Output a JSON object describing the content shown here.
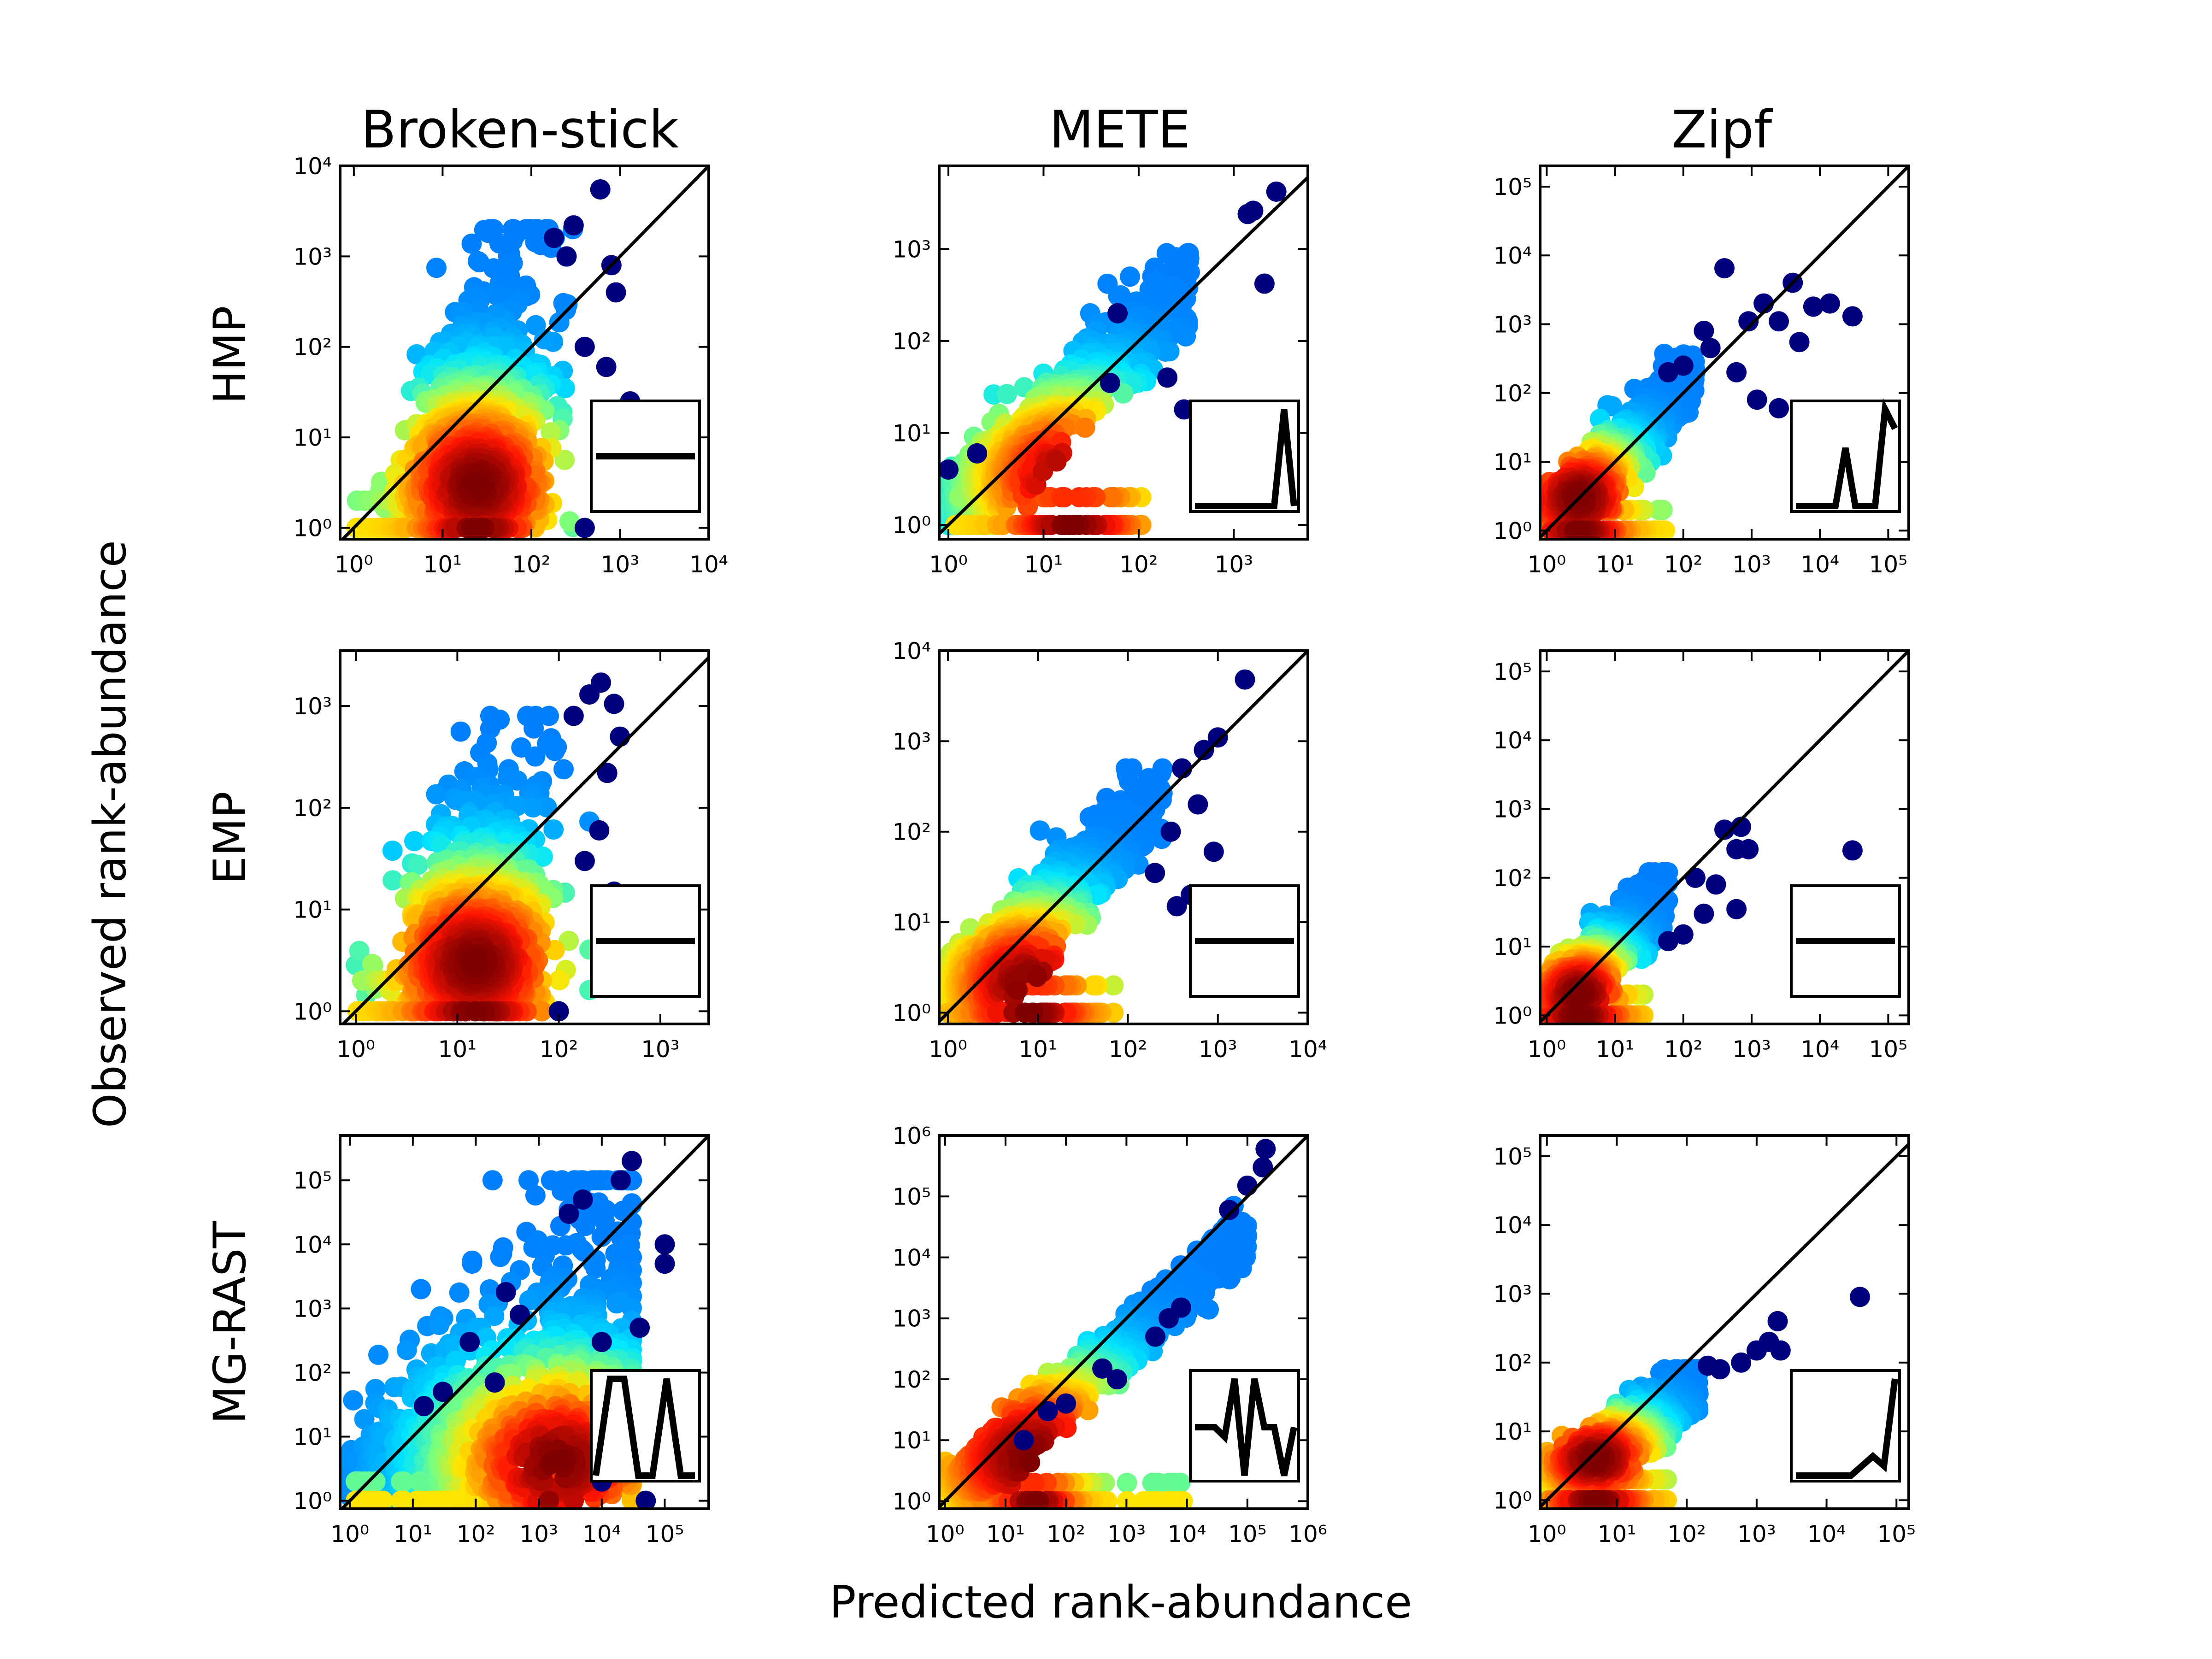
{
  "figure": {
    "xlabel": "Predicted rank-abundance",
    "ylabel": "Observed rank-abundance",
    "columns": [
      "Broken-stick",
      "METE",
      "Zipf"
    ],
    "rows": [
      "HMP",
      "EMP",
      "MG-RAST"
    ],
    "colormap": [
      "#00007f",
      "#0000ff",
      "#007fff",
      "#00e5ff",
      "#7dff7a",
      "#ffe500",
      "#ff7f00",
      "#ff1400",
      "#7f0000"
    ],
    "one_to_one_line": true
  },
  "chart_data": [
    {
      "type": "scatter",
      "row": "HMP",
      "column": "Broken-stick",
      "xscale": "log",
      "yscale": "log",
      "xlim": [
        0.7,
        10000
      ],
      "ylim": [
        0.75,
        10000
      ],
      "xticks": [
        1,
        10,
        100,
        1000,
        10000
      ],
      "yticks": [
        1,
        10,
        100,
        1000,
        10000
      ],
      "cloud": {
        "x_range": [
          1,
          300
        ],
        "y_range": [
          1,
          2000
        ],
        "dense_center": [
          25,
          3
        ],
        "pattern": "vertical plume"
      },
      "outliers": [
        [
          600,
          5500
        ],
        [
          300,
          2200
        ],
        [
          180,
          1600
        ],
        [
          250,
          1000
        ],
        [
          800,
          800
        ],
        [
          900,
          400
        ],
        [
          400,
          100
        ],
        [
          700,
          60
        ],
        [
          1300,
          25
        ],
        [
          400,
          1
        ]
      ],
      "inset": {
        "type": "line",
        "values": [
          1,
          1,
          1,
          1,
          1,
          1,
          1,
          1
        ]
      }
    },
    {
      "type": "scatter",
      "row": "HMP",
      "column": "METE",
      "xscale": "log",
      "yscale": "log",
      "xlim": [
        0.8,
        6000
      ],
      "ylim": [
        0.7,
        8000
      ],
      "xticks": [
        1,
        10,
        100,
        1000
      ],
      "yticks": [
        1,
        10,
        100,
        1000
      ],
      "cloud": {
        "x_range": [
          1,
          350
        ],
        "y_range": [
          1,
          900
        ],
        "dense_center": [
          20,
          3
        ],
        "pattern": "diagonal band"
      },
      "outliers": [
        [
          2800,
          4200
        ],
        [
          1600,
          2600
        ],
        [
          1400,
          2400
        ],
        [
          60,
          200
        ],
        [
          2100,
          420
        ],
        [
          300,
          18
        ],
        [
          50,
          35
        ],
        [
          1,
          4
        ],
        [
          2,
          6
        ],
        [
          200,
          40
        ]
      ],
      "inset": {
        "type": "line",
        "values": [
          0,
          0,
          0,
          0,
          0,
          0,
          0,
          0,
          0,
          1,
          0
        ]
      }
    },
    {
      "type": "scatter",
      "row": "HMP",
      "column": "Zipf",
      "xscale": "log",
      "yscale": "log",
      "xlim": [
        0.8,
        200000
      ],
      "ylim": [
        0.75,
        200000
      ],
      "xticks": [
        1,
        10,
        100,
        1000,
        10000,
        100000
      ],
      "yticks": [
        1,
        10,
        100,
        1000,
        10000,
        100000
      ],
      "cloud": {
        "x_range": [
          1,
          150
        ],
        "y_range": [
          1,
          400
        ],
        "dense_center": [
          3,
          3
        ],
        "pattern": "diagonal band"
      },
      "outliers": [
        [
          400,
          6500
        ],
        [
          900,
          1100
        ],
        [
          1500,
          2000
        ],
        [
          2500,
          1100
        ],
        [
          4000,
          4000
        ],
        [
          8000,
          1800
        ],
        [
          14000,
          2000
        ],
        [
          30000,
          1300
        ],
        [
          5000,
          550
        ],
        [
          250,
          450
        ],
        [
          600,
          200
        ],
        [
          1200,
          80
        ],
        [
          2500,
          60
        ],
        [
          200,
          800
        ],
        [
          100,
          250
        ],
        [
          60,
          200
        ]
      ],
      "inset": {
        "type": "line",
        "values": [
          0,
          0,
          0,
          0,
          0,
          0.6,
          0,
          0,
          0,
          1,
          0.8
        ]
      }
    },
    {
      "type": "scatter",
      "row": "EMP",
      "column": "Broken-stick",
      "xscale": "log",
      "yscale": "log",
      "xlim": [
        0.7,
        3000
      ],
      "ylim": [
        0.75,
        3500
      ],
      "xticks": [
        1,
        10,
        100,
        1000
      ],
      "yticks": [
        1,
        10,
        100,
        1000
      ],
      "cloud": {
        "x_range": [
          1,
          200
        ],
        "y_range": [
          1,
          800
        ],
        "dense_center": [
          15,
          3
        ],
        "pattern": "vertical plume"
      },
      "outliers": [
        [
          200,
          1300
        ],
        [
          260,
          1700
        ],
        [
          140,
          800
        ],
        [
          350,
          1050
        ],
        [
          400,
          500
        ],
        [
          300,
          220
        ],
        [
          250,
          60
        ],
        [
          180,
          30
        ],
        [
          350,
          15
        ],
        [
          100,
          1
        ]
      ],
      "inset": {
        "type": "line",
        "values": [
          1,
          1,
          1,
          1,
          1,
          1,
          1,
          1
        ]
      }
    },
    {
      "type": "scatter",
      "row": "EMP",
      "column": "METE",
      "xscale": "log",
      "yscale": "log",
      "xlim": [
        0.8,
        10000
      ],
      "ylim": [
        0.75,
        10000
      ],
      "xticks": [
        1,
        10,
        100,
        1000,
        10000
      ],
      "yticks": [
        1,
        10,
        100,
        1000,
        10000
      ],
      "cloud": {
        "x_range": [
          1,
          250
        ],
        "y_range": [
          1,
          500
        ],
        "dense_center": [
          8,
          2
        ],
        "pattern": "diagonal band"
      },
      "outliers": [
        [
          2000,
          4800
        ],
        [
          1000,
          1100
        ],
        [
          700,
          800
        ],
        [
          400,
          500
        ],
        [
          600,
          200
        ],
        [
          900,
          60
        ],
        [
          500,
          20
        ],
        [
          350,
          15
        ],
        [
          200,
          35
        ],
        [
          300,
          100
        ]
      ],
      "inset": {
        "type": "line",
        "values": [
          1,
          1,
          1,
          1,
          1,
          1,
          1,
          1
        ]
      }
    },
    {
      "type": "scatter",
      "row": "EMP",
      "column": "Zipf",
      "xscale": "log",
      "yscale": "log",
      "xlim": [
        0.8,
        200000
      ],
      "ylim": [
        0.75,
        200000
      ],
      "xticks": [
        1,
        10,
        100,
        1000,
        10000,
        100000
      ],
      "yticks": [
        1,
        10,
        100,
        1000,
        10000,
        100000
      ],
      "cloud": {
        "x_range": [
          1,
          60
        ],
        "y_range": [
          1,
          120
        ],
        "dense_center": [
          3,
          2
        ],
        "pattern": "diagonal band"
      },
      "outliers": [
        [
          400,
          500
        ],
        [
          700,
          550
        ],
        [
          600,
          260
        ],
        [
          900,
          260
        ],
        [
          30000,
          250
        ],
        [
          600,
          35
        ],
        [
          200,
          30
        ],
        [
          100,
          15
        ],
        [
          60,
          12
        ],
        [
          150,
          100
        ],
        [
          300,
          80
        ]
      ],
      "inset": {
        "type": "line",
        "values": [
          1,
          1,
          1,
          1,
          1,
          1,
          1,
          1
        ]
      }
    },
    {
      "type": "scatter",
      "row": "MG-RAST",
      "column": "Broken-stick",
      "xscale": "log",
      "yscale": "log",
      "xlim": [
        0.7,
        500000
      ],
      "ylim": [
        0.75,
        500000
      ],
      "xticks": [
        1,
        10,
        100,
        1000,
        10000,
        100000
      ],
      "yticks": [
        1,
        10,
        100,
        1000,
        10000,
        100000
      ],
      "cloud": {
        "x_range": [
          1,
          30000
        ],
        "y_range": [
          1,
          100000
        ],
        "dense_center": [
          2000,
          4
        ],
        "pattern": "two vertical plumes"
      },
      "outliers": [
        [
          30000,
          200000
        ],
        [
          20000,
          100000
        ],
        [
          5000,
          50000
        ],
        [
          3000,
          30000
        ],
        [
          100000,
          5000
        ],
        [
          100000,
          10000
        ],
        [
          40000,
          500
        ],
        [
          10000,
          300
        ],
        [
          300,
          1800
        ],
        [
          500,
          800
        ],
        [
          200,
          70
        ],
        [
          80,
          300
        ],
        [
          30,
          50
        ],
        [
          15,
          30
        ],
        [
          10000,
          2
        ],
        [
          50000,
          1
        ]
      ],
      "inset": {
        "type": "line",
        "values": [
          0,
          1,
          1,
          0,
          0,
          1,
          0,
          0
        ]
      }
    },
    {
      "type": "scatter",
      "row": "MG-RAST",
      "column": "METE",
      "xscale": "log",
      "yscale": "log",
      "xlim": [
        0.8,
        1000000
      ],
      "ylim": [
        0.75,
        1000000
      ],
      "xticks": [
        1,
        10,
        100,
        1000,
        10000,
        100000,
        1000000
      ],
      "yticks": [
        1,
        10,
        100,
        1000,
        10000,
        100000,
        1000000
      ],
      "cloud": {
        "x_range": [
          1,
          100000
        ],
        "y_range": [
          1,
          150000
        ],
        "dense_center": [
          30,
          5
        ],
        "pattern": "curved diagonal band"
      },
      "outliers": [
        [
          200000,
          600000
        ],
        [
          180000,
          300000
        ],
        [
          100000,
          150000
        ],
        [
          50000,
          60000
        ],
        [
          5000,
          1000
        ],
        [
          8000,
          1500
        ],
        [
          3000,
          500
        ],
        [
          700,
          100
        ],
        [
          400,
          150
        ],
        [
          100,
          40
        ],
        [
          50,
          30
        ],
        [
          20,
          10
        ]
      ],
      "inset": {
        "type": "line",
        "values": [
          0.5,
          0.5,
          0.5,
          0.4,
          1,
          0,
          1,
          0.5,
          0.5,
          0,
          0.5
        ]
      }
    },
    {
      "type": "scatter",
      "row": "MG-RAST",
      "column": "Zipf",
      "xscale": "log",
      "yscale": "log",
      "xlim": [
        0.8,
        150000
      ],
      "ylim": [
        0.75,
        200000
      ],
      "xticks": [
        1,
        10,
        100,
        1000,
        10000,
        100000
      ],
      "yticks": [
        1,
        10,
        100,
        1000,
        10000,
        100000
      ],
      "cloud": {
        "x_range": [
          1,
          150
        ],
        "y_range": [
          1,
          80
        ],
        "dense_center": [
          5,
          4
        ],
        "pattern": "diagonal band"
      },
      "outliers": [
        [
          2000,
          400
        ],
        [
          2200,
          150
        ],
        [
          1500,
          200
        ],
        [
          1000,
          150
        ],
        [
          30000,
          900
        ],
        [
          600,
          100
        ],
        [
          300,
          80
        ],
        [
          200,
          90
        ]
      ],
      "inset": {
        "type": "line",
        "values": [
          0,
          0,
          0,
          0,
          0,
          0,
          0.1,
          0.2,
          0.1,
          1
        ]
      }
    }
  ]
}
